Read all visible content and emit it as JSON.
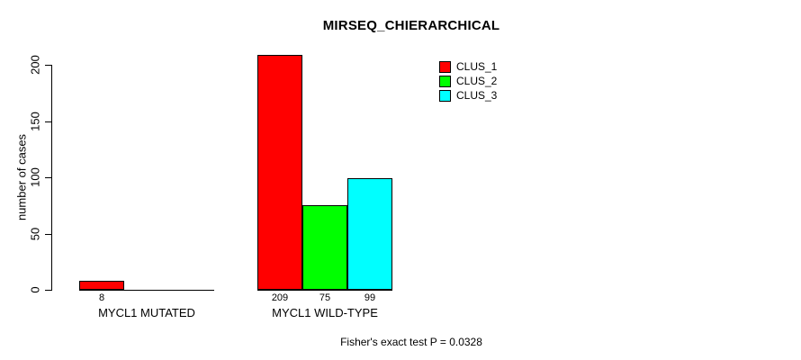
{
  "chart_data": {
    "type": "bar",
    "title": "MIRSEQ_CHIERARCHICAL",
    "ylabel": "number of cases",
    "xlabel": "",
    "yticks": [
      0,
      50,
      100,
      150,
      200
    ],
    "axis_range": [
      0,
      200
    ],
    "grid": false,
    "legend_position": "top-right",
    "categories": [
      "MYCL1 MUTATED",
      "MYCL1 WILD-TYPE"
    ],
    "series": [
      {
        "name": "CLUS_1",
        "color": "#ff0000",
        "values": [
          8,
          209
        ]
      },
      {
        "name": "CLUS_2",
        "color": "#00ff00",
        "values": [
          0,
          75
        ]
      },
      {
        "name": "CLUS_3",
        "color": "#00ffff",
        "values": [
          0,
          99
        ]
      }
    ],
    "annotation": "Fisher's exact test P = 0.0328"
  }
}
